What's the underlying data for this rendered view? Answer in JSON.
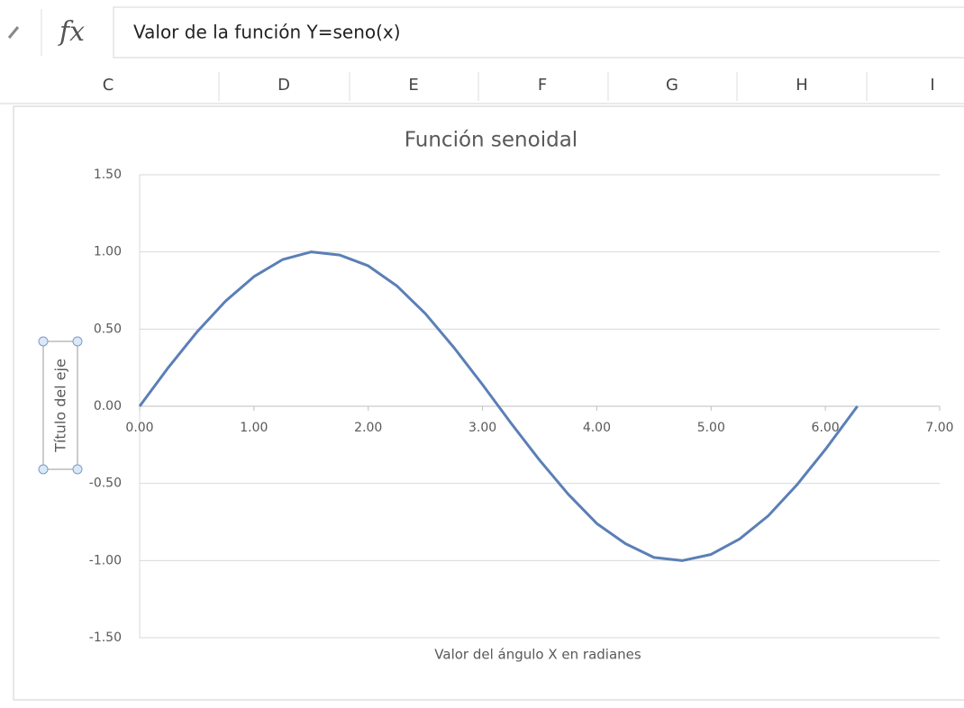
{
  "formula_bar": {
    "icon": "fx",
    "content": "Valor de la  función Y=seno(x)"
  },
  "columns": [
    "C",
    "D",
    "E",
    "F",
    "G",
    "H",
    "I"
  ],
  "chart_data": {
    "type": "line",
    "title": "Función  senoidal",
    "x_label": "Valor del  ángulo X en  radianes",
    "y_label": "Título del eje",
    "color": "#5b7fb6",
    "grid": true,
    "x": [
      0,
      0.25,
      0.5,
      0.75,
      1.0,
      1.25,
      1.5,
      1.75,
      2.0,
      2.25,
      2.5,
      2.75,
      3.0,
      3.25,
      3.5,
      3.75,
      4.0,
      4.25,
      4.5,
      4.75,
      5.0,
      5.25,
      5.5,
      5.75,
      6.0,
      6.25,
      6.28
    ],
    "values": [
      0,
      0.25,
      0.48,
      0.68,
      0.84,
      0.95,
      1.0,
      0.98,
      0.91,
      0.78,
      0.6,
      0.38,
      0.14,
      -0.11,
      -0.35,
      -0.57,
      -0.76,
      -0.89,
      -0.98,
      -1.0,
      -0.96,
      -0.86,
      -0.71,
      -0.51,
      -0.28,
      -0.03,
      0
    ],
    "xlim": [
      0,
      7
    ],
    "xticks": [
      {
        "value": 0,
        "label": "0.00"
      },
      {
        "value": 1,
        "label": "1.00"
      },
      {
        "value": 2,
        "label": "2.00"
      },
      {
        "value": 3,
        "label": "3.00"
      },
      {
        "value": 4,
        "label": "4.00"
      },
      {
        "value": 5,
        "label": "5.00"
      },
      {
        "value": 6,
        "label": "6.00"
      },
      {
        "value": 7,
        "label": "7.00"
      }
    ],
    "ylim": [
      -1.5,
      1.5
    ],
    "yticks": [
      {
        "value": -1.5,
        "label": "-1.50"
      },
      {
        "value": -1,
        "label": "-1.00"
      },
      {
        "value": -0.5,
        "label": "-0.50"
      },
      {
        "value": 0,
        "label": "0.00"
      },
      {
        "value": 0.5,
        "label": "0.50"
      },
      {
        "value": 1,
        "label": "1.00"
      },
      {
        "value": 1.5,
        "label": "1.50"
      }
    ]
  }
}
